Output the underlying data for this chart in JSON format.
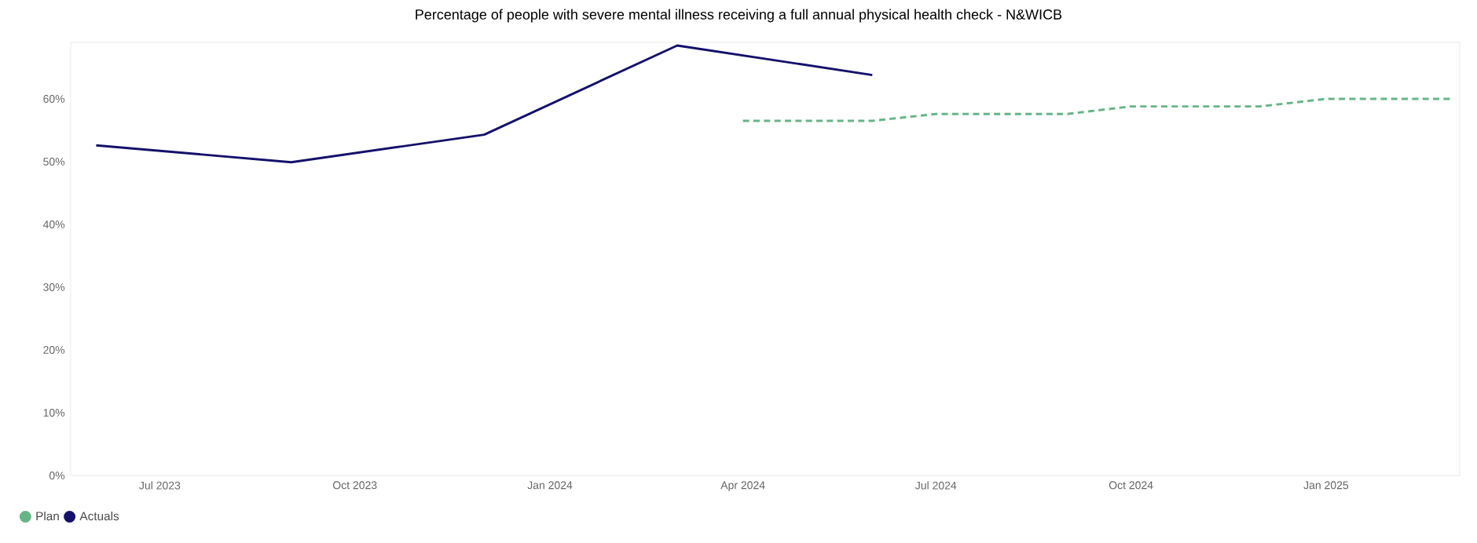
{
  "chart_data": {
    "type": "line",
    "title": "Percentage of people with severe mental illness receiving a full annual physical health check - N&WICB",
    "series": [
      {
        "name": "Plan",
        "color": "#66b587",
        "line_style": "dashed",
        "x": [
          "2024-04",
          "2024-05",
          "2024-06",
          "2024-07",
          "2024-08",
          "2024-09",
          "2024-10",
          "2024-11",
          "2024-12",
          "2025-01",
          "2025-02",
          "2025-03"
        ],
        "values": [
          56.5,
          56.5,
          56.5,
          57.6,
          57.6,
          57.6,
          58.8,
          58.8,
          58.8,
          60.0,
          60.0,
          60.0
        ]
      },
      {
        "name": "Actuals",
        "color": "#14106b",
        "line_style": "solid",
        "x": [
          "2023-06",
          "2023-09",
          "2023-12",
          "2024-03",
          "2024-06"
        ],
        "values": [
          52.6,
          49.9,
          54.3,
          68.5,
          63.8
        ]
      }
    ],
    "xticks": [
      {
        "value": "2023-07",
        "label": "Jul 2023"
      },
      {
        "value": "2023-10",
        "label": "Oct 2023"
      },
      {
        "value": "2024-01",
        "label": "Jan 2024"
      },
      {
        "value": "2024-04",
        "label": "Apr 2024"
      },
      {
        "value": "2024-07",
        "label": "Jul 2024"
      },
      {
        "value": "2024-10",
        "label": "Oct 2024"
      },
      {
        "value": "2025-01",
        "label": "Jan 2025"
      }
    ],
    "xlim": [
      "2023-05-20",
      "2025-03-05"
    ],
    "ylim": [
      0,
      69
    ],
    "yticks": [
      {
        "value": 0,
        "label": "0%"
      },
      {
        "value": 10,
        "label": "10%"
      },
      {
        "value": 20,
        "label": "20%"
      },
      {
        "value": 30,
        "label": "30%"
      },
      {
        "value": 40,
        "label": "40%"
      },
      {
        "value": 50,
        "label": "50%"
      },
      {
        "value": 60,
        "label": "60%"
      }
    ],
    "marker": "none",
    "legend": "bottom left"
  }
}
